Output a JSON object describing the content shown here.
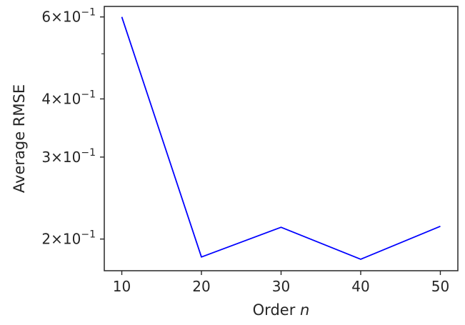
{
  "chart_data": {
    "type": "line",
    "xlabel": "Order",
    "xlabel_var": "n",
    "ylabel": "Average RMSE",
    "yscale": "log",
    "x": [
      10,
      20,
      30,
      40,
      50
    ],
    "series": [
      {
        "values": [
          0.6,
          0.183,
          0.212,
          0.181,
          0.213
        ],
        "color": "#0000ff"
      }
    ],
    "xlim": [
      7.8,
      52.2
    ],
    "ylim": [
      0.171,
      0.632
    ],
    "xticks": [
      {
        "value": 10,
        "label": "10"
      },
      {
        "value": 20,
        "label": "20"
      },
      {
        "value": 30,
        "label": "30"
      },
      {
        "value": 40,
        "label": "40"
      },
      {
        "value": 50,
        "label": "50"
      }
    ],
    "yticks_major": [
      {
        "value": 0.6,
        "mant": "6",
        "exp": "−1"
      },
      {
        "value": 0.4,
        "mant": "4",
        "exp": "−1"
      },
      {
        "value": 0.3,
        "mant": "3",
        "exp": "−1"
      },
      {
        "value": 0.2,
        "mant": "2",
        "exp": "−1"
      }
    ],
    "yticks_minor": [
      0.5
    ],
    "grid": false,
    "legend": "none"
  }
}
